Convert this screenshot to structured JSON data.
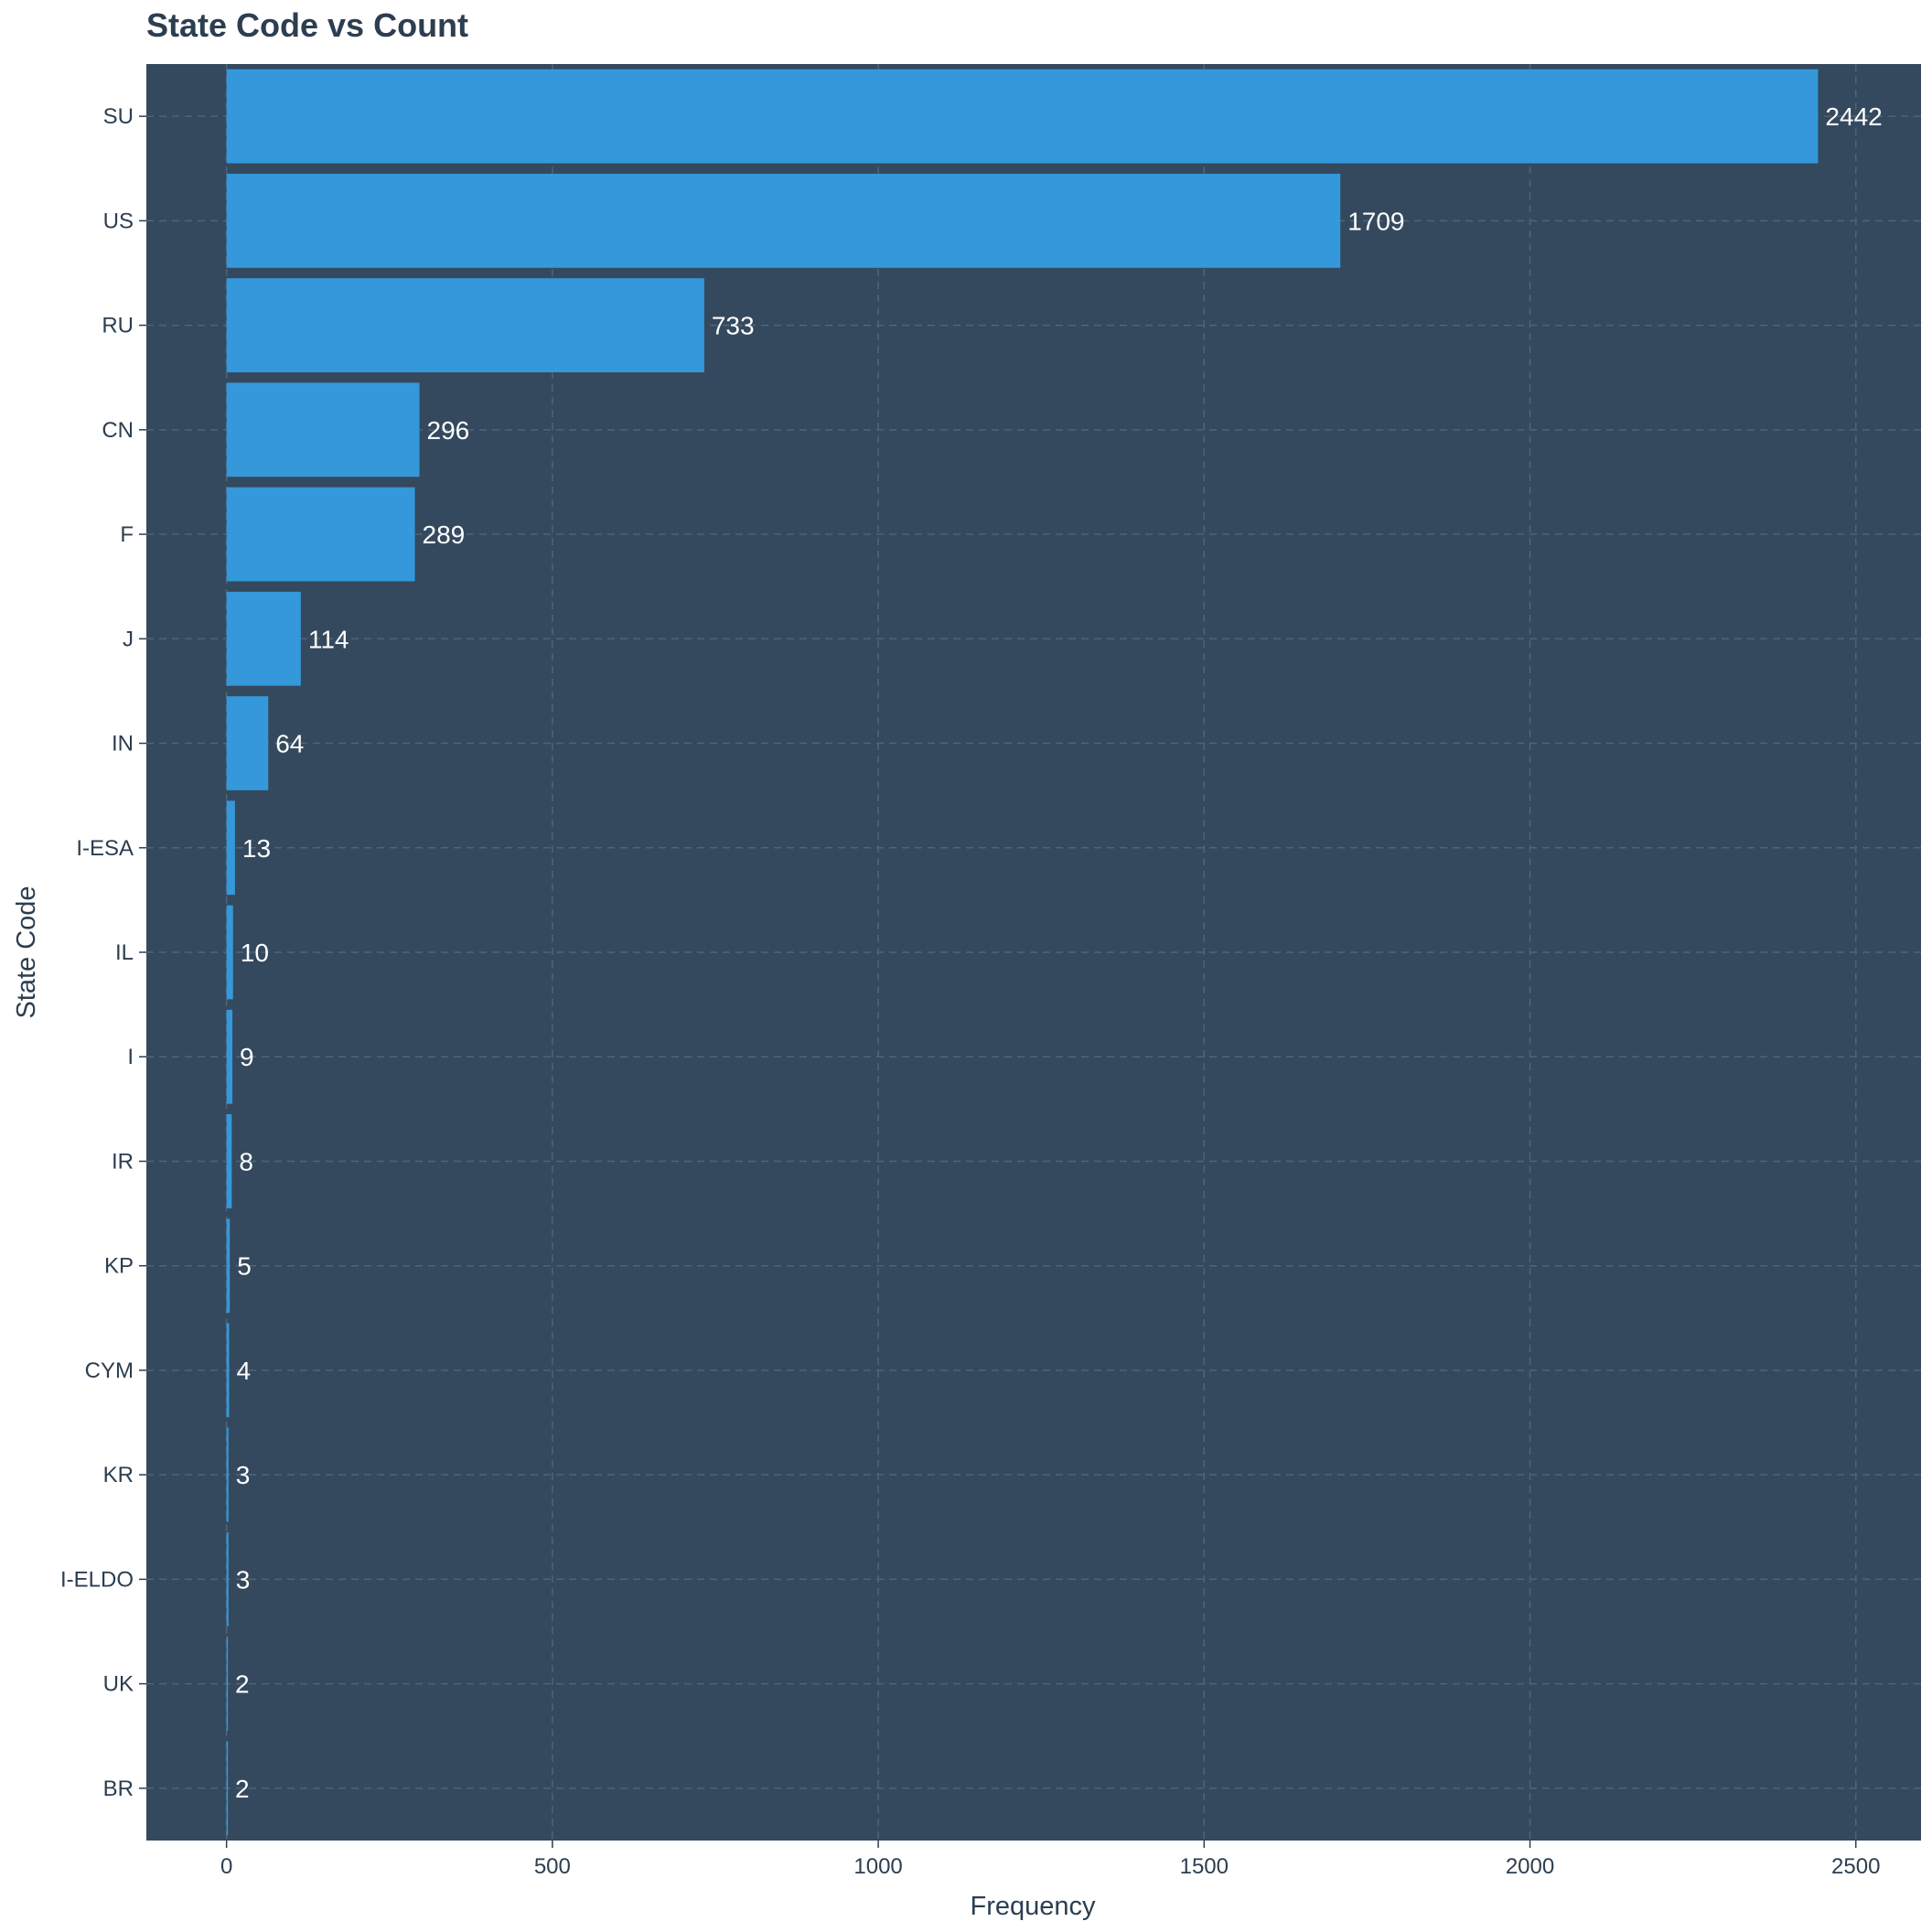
{
  "chart_data": {
    "type": "bar",
    "orientation": "horizontal",
    "title": "State Code vs Count",
    "xlabel": "Frequency",
    "ylabel": "State Code",
    "xlim": [
      -123,
      2600
    ],
    "x_ticks": [
      0,
      500,
      1000,
      1500,
      2000,
      2500
    ],
    "grid": true,
    "categories": [
      "SU",
      "US",
      "RU",
      "CN",
      "F",
      "J",
      "IN",
      "I-ESA",
      "IL",
      "I",
      "IR",
      "KP",
      "CYM",
      "KR",
      "I-ELDO",
      "UK",
      "BR"
    ],
    "values": [
      2442,
      1709,
      733,
      296,
      289,
      114,
      64,
      13,
      10,
      9,
      8,
      5,
      4,
      3,
      3,
      2,
      2
    ],
    "colors": {
      "panel": "#34495e",
      "bar": "#3498db",
      "grid": "#4f6478",
      "text": "#2c3e50",
      "data_label": "#ffffff"
    }
  }
}
